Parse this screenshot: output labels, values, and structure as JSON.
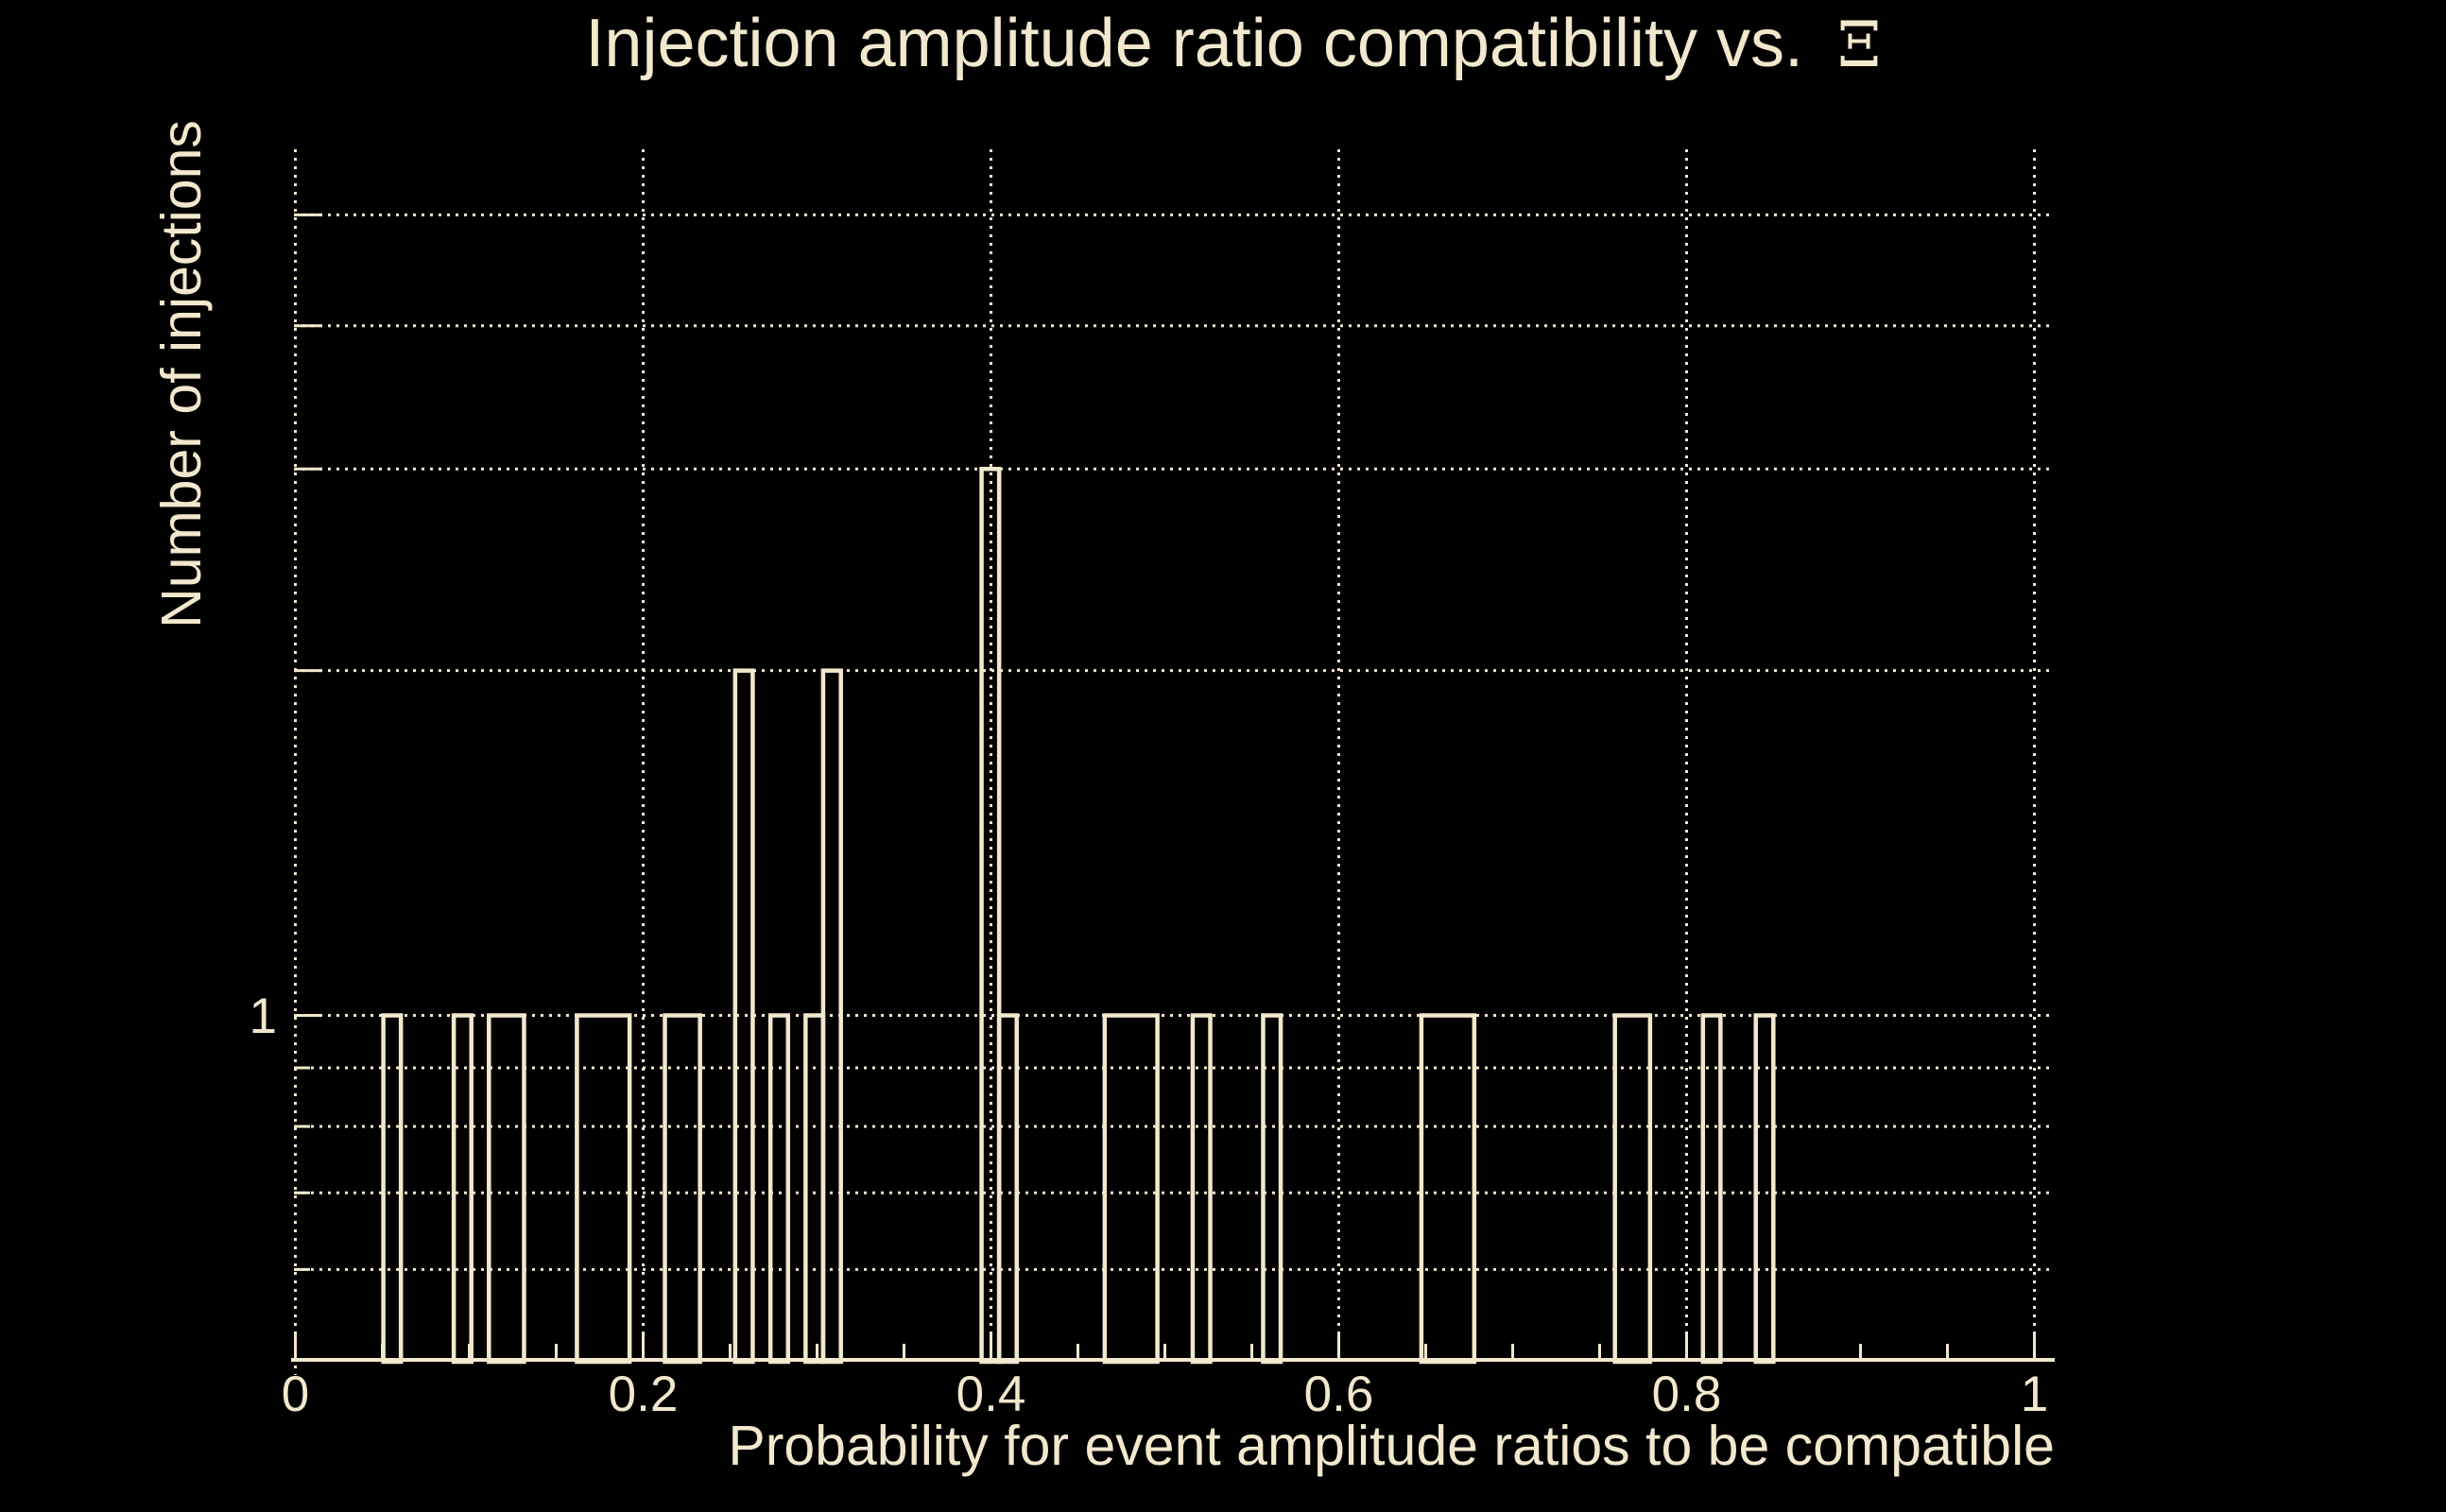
{
  "title": {
    "text": "Injection amplitude ratio compatibility vs.",
    "symbol": "Ξ"
  },
  "chart_data": {
    "type": "bar",
    "title": "Injection amplitude ratio compatibility vs. Ξ",
    "xlabel": "Probability for event amplitude ratios to be compatible",
    "ylabel": "Number of injections",
    "y_tick_label": "1",
    "x_axis": {
      "range": [
        0,
        1.0117
      ],
      "major_ticks": [
        0,
        0.2,
        0.4,
        0.6,
        0.8,
        1.0
      ],
      "tick_labels": [
        "0",
        "0.2",
        "0.4",
        "0.6",
        "0.8",
        "1"
      ],
      "minor_tick_step": 0.05,
      "grid": true
    },
    "y_axis": {
      "scale": "log",
      "range": [
        0.5,
        5.72
      ],
      "labeled_ticks": [
        1
      ],
      "major_gridlines": [
        1,
        2,
        3,
        4,
        5
      ],
      "minor_gridlines": [
        0.6,
        0.7,
        0.8,
        0.9
      ],
      "minor_ticks": [
        0.5,
        0.6,
        0.7,
        0.8,
        0.9
      ],
      "grid": true
    },
    "n_bins": 100,
    "bin_width": 0.0101,
    "segments": [
      {
        "x_start": 0.0506,
        "x_end": 0.0607,
        "count": 1
      },
      {
        "x_start": 0.0911,
        "x_end": 0.1012,
        "count": 1
      },
      {
        "x_start": 0.1113,
        "x_end": 0.1315,
        "count": 1
      },
      {
        "x_start": 0.1619,
        "x_end": 0.1922,
        "count": 1
      },
      {
        "x_start": 0.2125,
        "x_end": 0.2327,
        "count": 1
      },
      {
        "x_start": 0.2529,
        "x_end": 0.263,
        "count": 2
      },
      {
        "x_start": 0.2732,
        "x_end": 0.2833,
        "count": 1
      },
      {
        "x_start": 0.2934,
        "x_end": 0.3035,
        "count": 1
      },
      {
        "x_start": 0.3035,
        "x_end": 0.3137,
        "count": 2
      },
      {
        "x_start": 0.3946,
        "x_end": 0.4047,
        "count": 3
      },
      {
        "x_start": 0.4047,
        "x_end": 0.4148,
        "count": 1
      },
      {
        "x_start": 0.4654,
        "x_end": 0.4957,
        "count": 1
      },
      {
        "x_start": 0.516,
        "x_end": 0.5261,
        "count": 1
      },
      {
        "x_start": 0.5565,
        "x_end": 0.5666,
        "count": 1
      },
      {
        "x_start": 0.6475,
        "x_end": 0.6779,
        "count": 1
      },
      {
        "x_start": 0.7588,
        "x_end": 0.779,
        "count": 1
      },
      {
        "x_start": 0.8094,
        "x_end": 0.8195,
        "count": 1
      },
      {
        "x_start": 0.8398,
        "x_end": 0.8499,
        "count": 1
      }
    ],
    "colors": {
      "background": "#000000",
      "foreground": "#f1e8cd"
    }
  }
}
